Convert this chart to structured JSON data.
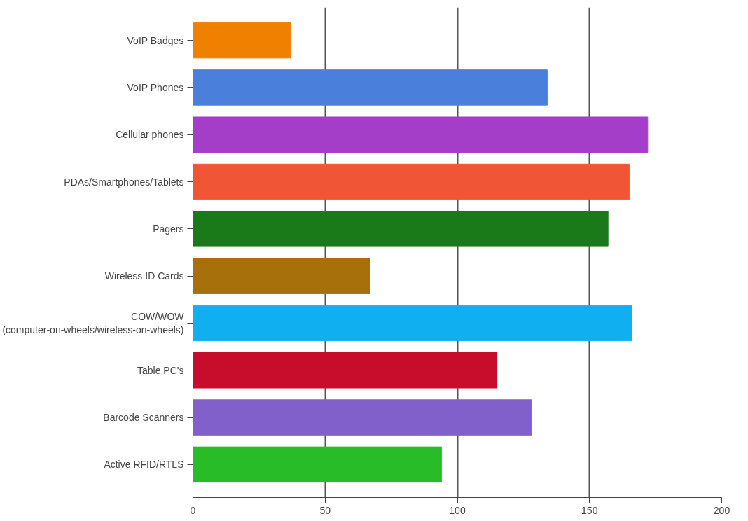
{
  "chart_data": {
    "type": "bar",
    "orientation": "horizontal",
    "categories": [
      "VoIP Badges",
      "VoIP Phones",
      "Cellular phones",
      "PDAs/Smartphones/Tablets",
      "Pagers",
      "Wireless ID Cards",
      "COW/WOW\n(computer-on-wheels/wireless-on-wheels)",
      "Table PC's",
      "Barcode Scanners",
      "Active RFID/RTLS"
    ],
    "values": [
      37,
      134,
      172,
      165,
      157,
      67,
      166,
      115,
      128,
      94
    ],
    "colors": [
      "#f08000",
      "#4a80dc",
      "#a43ec8",
      "#f05636",
      "#1a7a1a",
      "#a8700a",
      "#10b0f0",
      "#c80c2c",
      "#8260cc",
      "#28bc28"
    ],
    "xlim": [
      0,
      200
    ],
    "xticks": [
      0,
      50,
      100,
      150,
      200
    ],
    "grid": "x"
  }
}
